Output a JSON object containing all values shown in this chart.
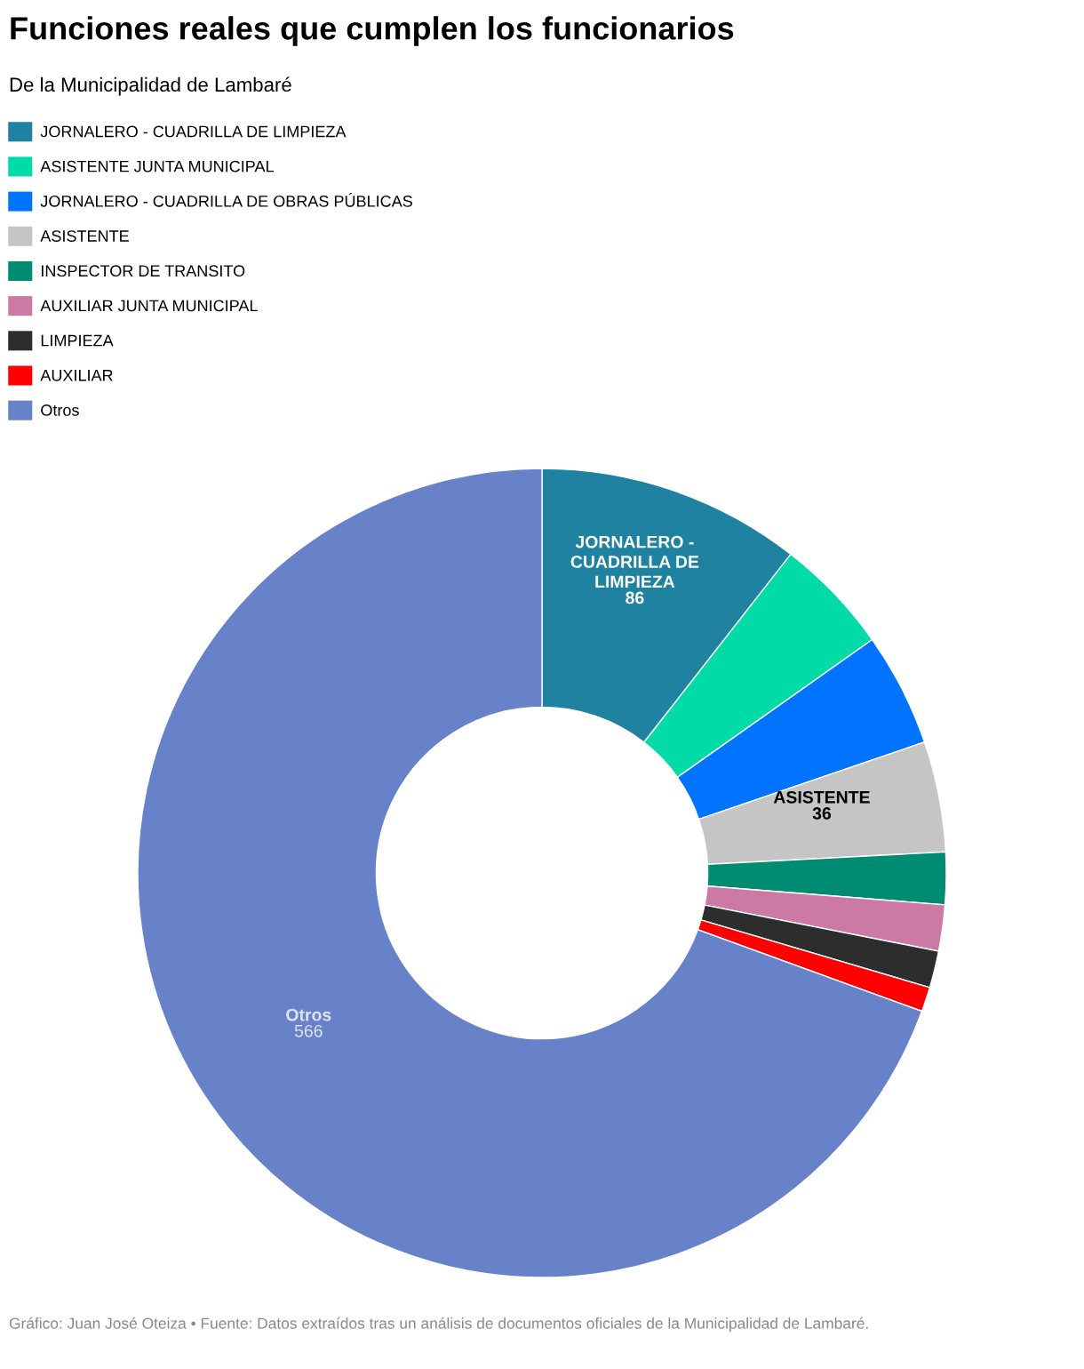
{
  "chart_data": {
    "type": "donut",
    "title": "Funciones reales que cumplen los funcionarios",
    "subtitle": "De la Municipalidad de Lambaré",
    "categories": [
      "JORNALERO - CUADRILLA DE LIMPIEZA",
      "ASISTENTE JUNTA MUNICIPAL",
      "JORNALERO - CUADRILLA DE OBRAS PÚBLICAS",
      "ASISTENTE",
      "INSPECTOR DE TRANSITO",
      "AUXILIAR JUNTA MUNICIPAL",
      "LIMPIEZA",
      "AUXILIAR",
      "Otros"
    ],
    "values": [
      86,
      38,
      37,
      36,
      17,
      15,
      12,
      8,
      566
    ],
    "colors": [
      "#1f82a0",
      "#00dba8",
      "#0073ff",
      "#c5c5c5",
      "#008c73",
      "#cc7aa5",
      "#2d2d2d",
      "#ff0000",
      "#6782c9"
    ],
    "value_labels": [
      "86",
      null,
      null,
      "36",
      null,
      null,
      null,
      null,
      "566"
    ],
    "legend": "top left",
    "annotations": [
      "Gráfico: Juan José Oteiza • Fuente: Datos extraídos tras un análisis de documentos oficiales de la Municipalidad de Lambaré."
    ]
  }
}
